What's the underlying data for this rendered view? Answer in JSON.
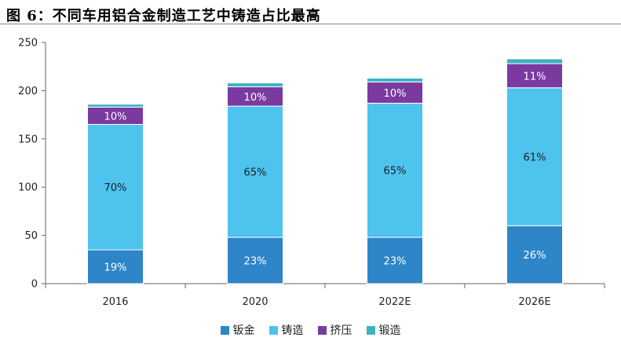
{
  "title": "图 6：不同车用铝合金制造工艺中铸造占比最高",
  "chart_data": {
    "type": "bar",
    "stacked": true,
    "categories": [
      "2016",
      "2020",
      "2022E",
      "2026E"
    ],
    "ylim": [
      0,
      250
    ],
    "yticks": [
      0,
      50,
      100,
      150,
      200,
      250
    ],
    "grid": false,
    "legend_position": "bottom",
    "series": [
      {
        "name": "钣金",
        "color": "#2e85c8",
        "values": [
          35,
          48,
          48,
          60
        ],
        "labels": [
          "19%",
          "23%",
          "23%",
          "26%"
        ],
        "label_color": "#ffffff"
      },
      {
        "name": "铸造",
        "color": "#4dc3ee",
        "values": [
          130,
          136,
          139,
          143
        ],
        "labels": [
          "70%",
          "65%",
          "65%",
          "61%"
        ],
        "label_color": "#222222"
      },
      {
        "name": "挤压",
        "color": "#7a3aa0",
        "values": [
          18,
          20,
          22,
          25
        ],
        "labels": [
          "10%",
          "10%",
          "10%",
          "11%"
        ],
        "label_color": "#ffffff"
      },
      {
        "name": "锻造",
        "color": "#3bb3c3",
        "values": [
          3,
          4,
          4,
          5
        ],
        "labels": [
          "",
          "",
          "",
          ""
        ],
        "label_color": "#222222"
      }
    ]
  }
}
